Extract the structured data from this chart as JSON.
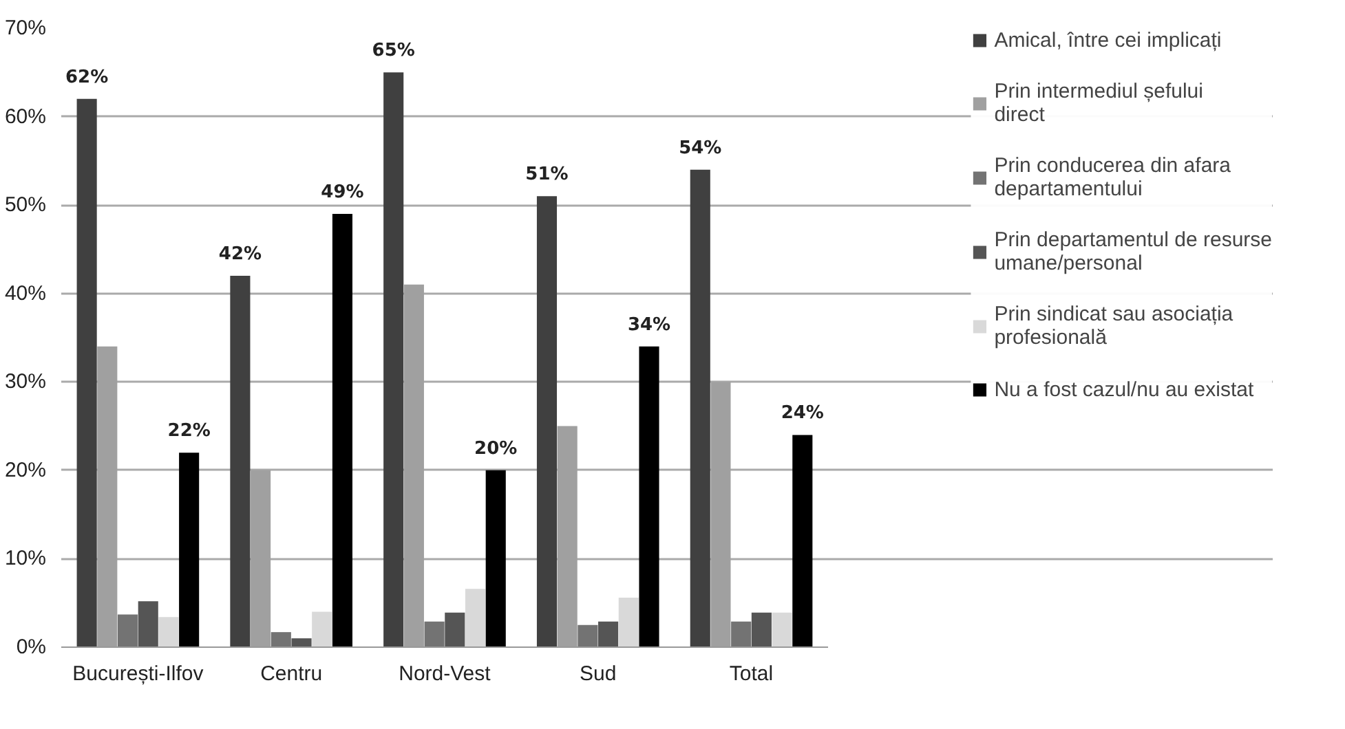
{
  "chart_data": {
    "type": "bar",
    "categories": [
      "București-Ilfov",
      "Centru",
      "Nord-Vest",
      "Sud",
      "Total"
    ],
    "series": [
      {
        "name": "Amical, între cei implicați",
        "color": "#404040",
        "values": [
          62,
          42,
          65,
          51,
          54
        ],
        "value_labels": [
          "62%",
          "42%",
          "65%",
          "51%",
          "54%"
        ]
      },
      {
        "name": "Prin intermediul șefului direct",
        "color": "#a0a0a0",
        "values": [
          34,
          20,
          41,
          25,
          30
        ]
      },
      {
        "name": "Prin conducerea din afara departamentului",
        "color": "#737373",
        "values": [
          3.7,
          1.7,
          2.9,
          2.5,
          2.9
        ]
      },
      {
        "name": "Prin departamentul de resurse umane/personal",
        "color": "#555555",
        "values": [
          5.2,
          1.0,
          3.9,
          2.9,
          3.9
        ]
      },
      {
        "name": "Prin sindicat sau asociația profesională",
        "color": "#d9d9d9",
        "values": [
          3.4,
          4.0,
          6.6,
          5.6,
          3.9
        ]
      },
      {
        "name": "Nu a fost cazul/nu au existat",
        "color": "#000000",
        "values": [
          22,
          49,
          20,
          34,
          24
        ],
        "value_labels": [
          "22%",
          "49%",
          "20%",
          "34%",
          "24%"
        ]
      }
    ],
    "ylim": [
      0,
      70
    ],
    "yticks": [
      {
        "value": 0,
        "label": "0%"
      },
      {
        "value": 10,
        "label": "10%"
      },
      {
        "value": 20,
        "label": "20%"
      },
      {
        "value": 30,
        "label": "30%"
      },
      {
        "value": 40,
        "label": "40%"
      },
      {
        "value": 50,
        "label": "50%"
      },
      {
        "value": 60,
        "label": "60%"
      },
      {
        "value": 70,
        "label": "70%"
      }
    ],
    "grid": "y",
    "legend": "right"
  }
}
